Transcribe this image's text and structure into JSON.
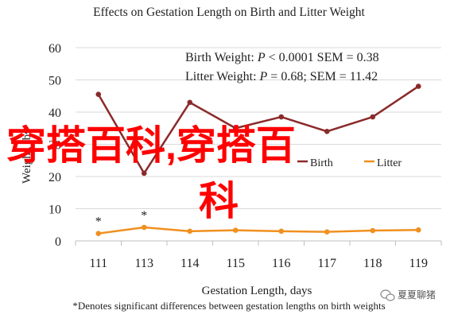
{
  "colors": {
    "birth": "#8B2A2A",
    "litter": "#F0901F",
    "grid": "#D9D9D9",
    "axis": "#BFBFBF",
    "overlay": "#FF0000",
    "text": "#222222"
  },
  "chart_data": {
    "type": "line",
    "title": "Effects on Gestation Length on Birth and Litter Weight",
    "xlabel": "Gestation Length, days",
    "ylabel": "Weight, lbs",
    "x": [
      "111",
      "113",
      "114",
      "115",
      "116",
      "117",
      "118",
      "119"
    ],
    "ylim": [
      0,
      60
    ],
    "yticks": [
      "0",
      "10",
      "20",
      "30",
      "40",
      "50",
      "60"
    ],
    "grid": true,
    "legend_position": "bottom-right",
    "series": [
      {
        "name": "Birth",
        "values": [
          45.5,
          21,
          43,
          35,
          38.5,
          34,
          38.5,
          48
        ],
        "color_key": "birth"
      },
      {
        "name": "Litter",
        "values": [
          2.3,
          4.2,
          3.0,
          3.3,
          3.0,
          2.8,
          3.2,
          3.4
        ],
        "color_key": "litter"
      }
    ],
    "significance_markers": [
      {
        "x": "111",
        "text": "*"
      },
      {
        "x": "113",
        "text": "*"
      }
    ],
    "annotations": {
      "birth_line1_label": "Birth Weight: ",
      "birth_line1_p": "P",
      "birth_line1_rest": " < 0.0001 SEM = 0.38",
      "litter_line2_label": "Litter Weight: ",
      "litter_line2_p": "P",
      "litter_line2_rest": " = 0.68; SEM = 11.42"
    },
    "footnote": "*Denotes significant differences between gestation lengths on birth weights"
  },
  "overlay": {
    "line1": "穿搭百科,穿搭百",
    "line2": "科"
  },
  "watermark": {
    "text": "夏夏聊猪",
    "icon": "wechat-icon"
  }
}
